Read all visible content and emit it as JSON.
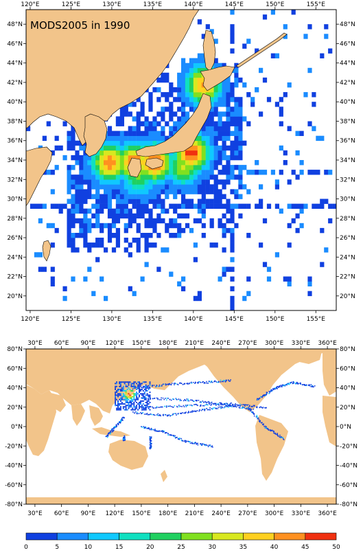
{
  "title": "MODS2005 in 1990",
  "colors": {
    "land": "#f2c48a",
    "ocean": "#ffffff",
    "frame": "#000000"
  },
  "regional_map": {
    "lon_range": [
      119.5,
      157.5
    ],
    "lat_range": [
      18.5,
      49.5
    ],
    "top_lon_labels": [
      "120°E",
      "125°E",
      "130°E",
      "135°E",
      "140°E",
      "145°E",
      "150°E",
      "155°E"
    ],
    "bottom_lon_labels": [
      "120°E",
      "125°E",
      "130°E",
      "135°E",
      "140°E",
      "145°E",
      "150°E",
      "155°E"
    ],
    "left_lat_labels": [
      "48°N",
      "46°N",
      "44°N",
      "42°N",
      "40°N",
      "38°N",
      "36°N",
      "34°N",
      "32°N",
      "30°N",
      "28°N",
      "26°N",
      "24°N",
      "22°N",
      "20°N"
    ],
    "right_lat_labels": [
      "48°N",
      "46°N",
      "44°N",
      "42°N",
      "40°N",
      "38°N",
      "36°N",
      "34°N",
      "32°N",
      "30°N",
      "28°N",
      "26°N",
      "24°N",
      "22°N",
      "20°N"
    ]
  },
  "global_map": {
    "lon_range": [
      20,
      370
    ],
    "lat_range": [
      -80,
      80
    ],
    "top_lon_labels": [
      "30°E",
      "60°E",
      "90°E",
      "120°E",
      "150°E",
      "180°E",
      "210°E",
      "240°E",
      "270°E",
      "300°E",
      "330°E",
      "360°E"
    ],
    "bottom_lon_labels": [
      "30°E",
      "60°E",
      "90°E",
      "120°E",
      "150°E",
      "180°E",
      "210°E",
      "240°E",
      "270°E",
      "300°E",
      "330°E",
      "360°E"
    ],
    "left_lat_labels": [
      "80°N",
      "60°N",
      "40°N",
      "20°N",
      "0°N",
      "-20°N",
      "-40°N",
      "-60°N",
      "-80°N"
    ],
    "right_lat_labels": [
      "80°N",
      "60°N",
      "40°N",
      "20°N",
      "0°N",
      "-20°N",
      "-40°N",
      "-60°N",
      "-80°N"
    ]
  },
  "colorbar": {
    "labels": [
      "0",
      "5",
      "10",
      "15",
      "20",
      "25",
      "30",
      "35",
      "40",
      "45",
      "50"
    ],
    "colors": [
      "#1040e0",
      "#1a8cff",
      "#10c8ff",
      "#10e0c0",
      "#20d060",
      "#80e020",
      "#d8e820",
      "#ffd020",
      "#ff9020",
      "#f03010"
    ]
  },
  "chart_data": {
    "type": "heatmap",
    "title": "MODS2005 in 1990",
    "value_range": [
      0,
      50
    ],
    "levels": [
      0,
      5,
      10,
      15,
      20,
      25,
      30,
      35,
      40,
      45,
      50
    ],
    "hotspots": [
      {
        "lon": 135,
        "lat": 33.5,
        "level": 48
      },
      {
        "lon": 139.5,
        "lat": 34.5,
        "level": 48
      },
      {
        "lon": 132.5,
        "lat": 33.5,
        "level": 46
      },
      {
        "lon": 129.5,
        "lat": 33.5,
        "level": 44
      },
      {
        "lon": 141,
        "lat": 41.5,
        "level": 42
      },
      {
        "lon": 138.5,
        "lat": 33,
        "level": 30
      },
      {
        "lon": 133,
        "lat": 32,
        "level": 25
      }
    ]
  }
}
